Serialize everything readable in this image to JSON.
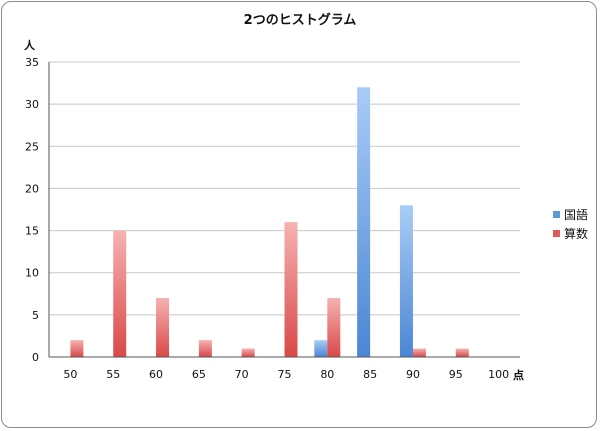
{
  "chart_data": {
    "type": "bar",
    "title": "2つのヒストグラム",
    "ylabel": "人",
    "xlabel": "点",
    "categories": [
      "50",
      "55",
      "60",
      "65",
      "70",
      "75",
      "80",
      "85",
      "90",
      "95",
      "100"
    ],
    "ylim": [
      0,
      35
    ],
    "yticks": [
      0,
      5,
      10,
      15,
      20,
      25,
      30,
      35
    ],
    "grid": true,
    "legend": "right",
    "series": [
      {
        "name": "国語",
        "color": "#5b9bd5",
        "values": [
          0,
          0,
          0,
          0,
          0,
          0,
          2,
          32,
          18,
          0,
          0
        ]
      },
      {
        "name": "算数",
        "color": "#e05a5a",
        "values": [
          2,
          15,
          7,
          2,
          1,
          16,
          7,
          0,
          1,
          1,
          0
        ]
      }
    ]
  }
}
